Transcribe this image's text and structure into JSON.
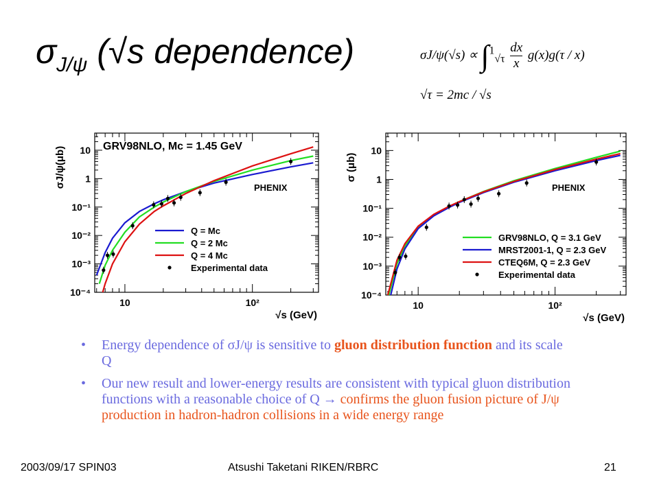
{
  "title": {
    "sigma": "σ",
    "sub": "J/ψ",
    "rest": " (√s dependence)"
  },
  "formula": {
    "lhs": "σJ/ψ(√s) ∝",
    "int_upper": "1",
    "int_lower": "√τ",
    "num": "dx",
    "den": "x",
    "integrand": "g(x)g(τ / x)",
    "line2": "√τ = 2mc / √s"
  },
  "bullets": [
    {
      "segments": [
        {
          "t": "Energy dependence of σJ/ψ is sensitive to ",
          "c": "n"
        },
        {
          "t": "gluon distribution function",
          "c": "hb"
        },
        {
          "t": " and its scale Q",
          "c": "n"
        }
      ]
    },
    {
      "segments": [
        {
          "t": "Our new result and lower-energy results are consistent with typical gluon distribution functions with a reasonable choice of Q → ",
          "c": "n"
        },
        {
          "t": "confirms the gluon fusion picture of J/ψ production in hadron-hadron collisions in a wide energy range",
          "c": "h"
        }
      ]
    }
  ],
  "footer": {
    "left": "2003/09/17 SPIN03",
    "center": "Atsushi Taketani RIKEN/RBRC",
    "right": "21"
  },
  "chart_data": [
    {
      "type": "line",
      "title": "GRV98NLO, Mc = 1.45 GeV",
      "annotation": "PHENIX",
      "ylabel": "σJ/ψ(μb)",
      "xlabel": "√s (GeV)",
      "xscale": "log",
      "yscale": "log",
      "xlim": [
        5.8,
        330
      ],
      "ylim": [
        0.0001,
        40
      ],
      "xticks": [
        {
          "v": 10,
          "label": "10"
        },
        {
          "v": 100,
          "label": "10²"
        }
      ],
      "yticks": [
        {
          "v": 10,
          "label": "10"
        },
        {
          "v": 1,
          "label": "1"
        },
        {
          "v": 0.1,
          "label": "10⁻¹"
        },
        {
          "v": 0.01,
          "label": "10⁻²"
        },
        {
          "v": 0.001,
          "label": "10⁻³"
        },
        {
          "v": 0.0001,
          "label": "10⁻⁴"
        }
      ],
      "legend_position": "bottom-right",
      "series": [
        {
          "name": "Q = Mc",
          "color": "#1a1ad0",
          "x": [
            6,
            7,
            8,
            10,
            13,
            17,
            20,
            30,
            50,
            100,
            200,
            300
          ],
          "y": [
            0.0004,
            0.0025,
            0.008,
            0.028,
            0.07,
            0.13,
            0.18,
            0.35,
            0.7,
            1.4,
            2.6,
            3.6
          ]
        },
        {
          "name": "Q = 2 Mc",
          "color": "#22dd22",
          "x": [
            6.3,
            7,
            8,
            10,
            13,
            17,
            20,
            30,
            50,
            100,
            200,
            300
          ],
          "y": [
            0.0002,
            0.0009,
            0.003,
            0.013,
            0.045,
            0.1,
            0.15,
            0.35,
            0.8,
            2.0,
            4.3,
            6.2
          ]
        },
        {
          "name": "Q = 4 Mc",
          "color": "#dd1111",
          "x": [
            6.7,
            7,
            8,
            10,
            13,
            17,
            20,
            30,
            50,
            100,
            200,
            300
          ],
          "y": [
            0.0001,
            0.0002,
            0.001,
            0.006,
            0.025,
            0.07,
            0.11,
            0.3,
            0.85,
            2.8,
            7.5,
            13
          ]
        }
      ],
      "experimental": {
        "name": "Experimental data",
        "x": [
          6.8,
          7.3,
          8.1,
          11.5,
          16.8,
          19.4,
          21.7,
          24.3,
          27.4,
          38.8,
          62,
          200
        ],
        "y": [
          0.0006,
          0.002,
          0.0022,
          0.022,
          0.12,
          0.13,
          0.2,
          0.14,
          0.22,
          0.32,
          0.75,
          4.0
        ]
      }
    },
    {
      "type": "line",
      "title": "",
      "annotation": "PHENIX",
      "ylabel": "σ (μb)",
      "xlabel": "√s (GeV)",
      "xscale": "log",
      "yscale": "log",
      "xlim": [
        5.8,
        330
      ],
      "ylim": [
        0.0001,
        40
      ],
      "xticks": [
        {
          "v": 10,
          "label": "10"
        },
        {
          "v": 100,
          "label": "10²"
        }
      ],
      "yticks": [
        {
          "v": 10,
          "label": "10"
        },
        {
          "v": 1,
          "label": "1"
        },
        {
          "v": 0.1,
          "label": "10⁻¹"
        },
        {
          "v": 0.01,
          "label": "10⁻²"
        },
        {
          "v": 0.001,
          "label": "10⁻³"
        },
        {
          "v": 0.0001,
          "label": "10⁻⁴"
        }
      ],
      "legend_position": "bottom-right",
      "series": [
        {
          "name": "GRV98NLO, Q = 3.1 GeV",
          "color": "#22dd22",
          "x": [
            6.1,
            7,
            8,
            10,
            13,
            17,
            20,
            30,
            50,
            100,
            200,
            300
          ],
          "y": [
            0.0001,
            0.0012,
            0.005,
            0.022,
            0.06,
            0.12,
            0.17,
            0.38,
            0.9,
            2.4,
            5.8,
            9.5
          ]
        },
        {
          "name": "MRST2001-1, Q = 2.3 GeV",
          "color": "#1a1ad0",
          "x": [
            6.3,
            7,
            8,
            10,
            13,
            17,
            20,
            30,
            50,
            100,
            200,
            300
          ],
          "y": [
            0.0001,
            0.0008,
            0.004,
            0.02,
            0.055,
            0.11,
            0.16,
            0.35,
            0.8,
            2.0,
            4.5,
            6.8
          ]
        },
        {
          "name": "CTEQ6M, Q = 2.3 GeV",
          "color": "#dd1111",
          "x": [
            6.0,
            7,
            8,
            10,
            13,
            17,
            20,
            30,
            50,
            100,
            200,
            300
          ],
          "y": [
            0.0001,
            0.0016,
            0.006,
            0.024,
            0.062,
            0.12,
            0.17,
            0.37,
            0.85,
            2.2,
            5.0,
            7.8
          ]
        }
      ],
      "experimental": {
        "name": "Experimental data",
        "x": [
          6.8,
          7.3,
          8.1,
          11.5,
          16.8,
          19.4,
          21.7,
          24.3,
          27.4,
          38.8,
          62,
          200
        ],
        "y": [
          0.0006,
          0.002,
          0.0022,
          0.022,
          0.12,
          0.13,
          0.2,
          0.14,
          0.22,
          0.32,
          0.75,
          4.0
        ]
      }
    }
  ]
}
